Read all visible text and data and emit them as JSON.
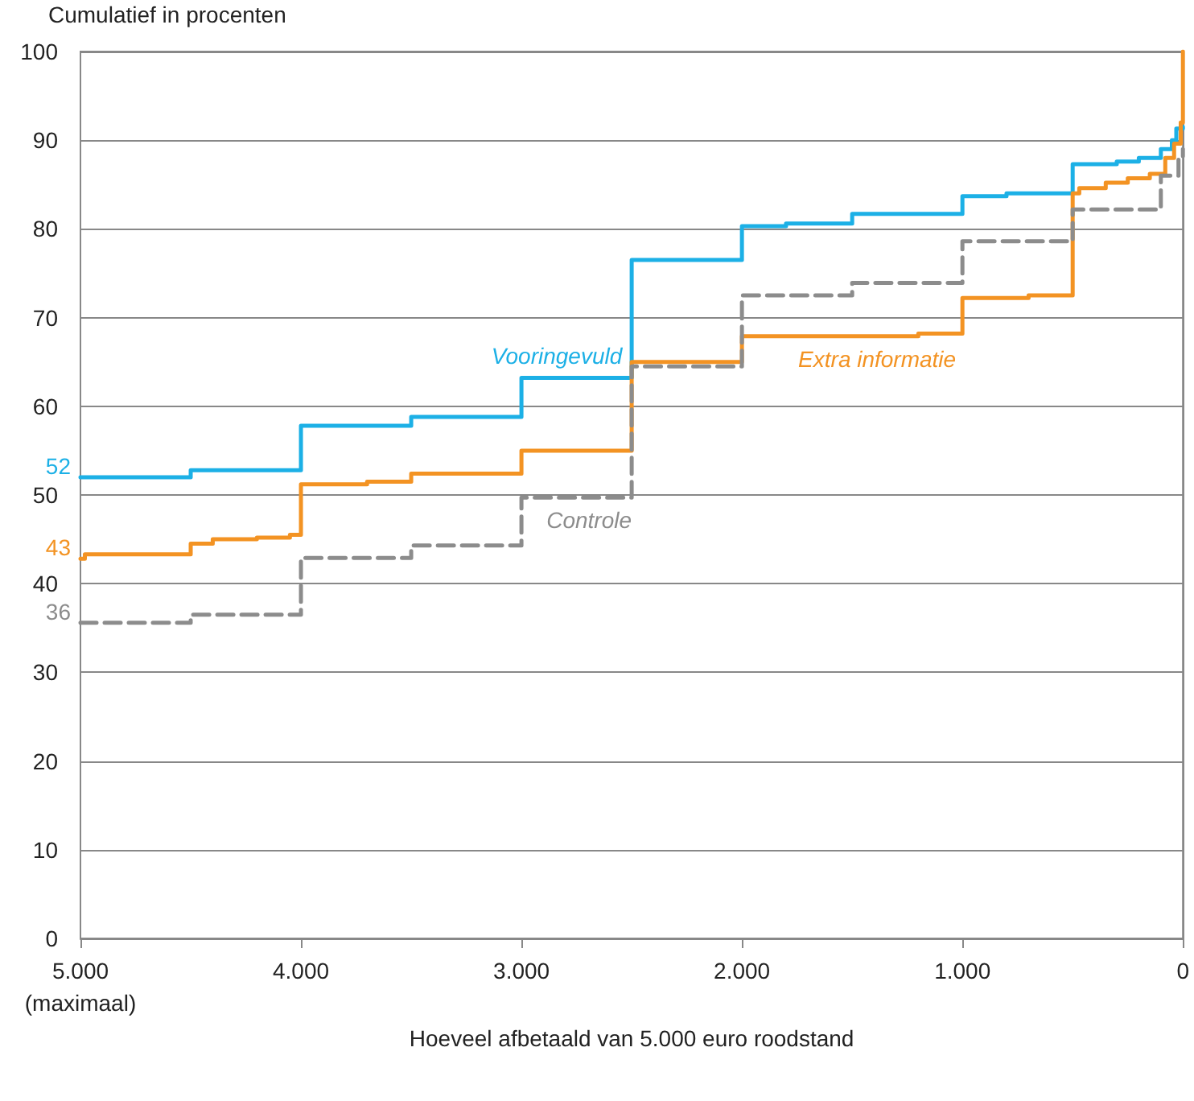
{
  "chart_data": {
    "type": "step",
    "ylabel": "Cumulatief in procenten",
    "xlabel": "Hoeveel afbetaald van 5.000 euro roodstand",
    "xlim": [
      5000,
      0
    ],
    "xticks": [
      {
        "value": 5000,
        "label": "5.000\n(maximaal)"
      },
      {
        "value": 4000,
        "label": "4.000"
      },
      {
        "value": 3000,
        "label": "3.000"
      },
      {
        "value": 2000,
        "label": "2.000"
      },
      {
        "value": 1000,
        "label": "1.000"
      },
      0
    ],
    "ylim": [
      0,
      100
    ],
    "yticks": [
      0,
      10,
      20,
      30,
      40,
      50,
      60,
      70,
      80,
      90,
      100
    ],
    "grid": "y",
    "legend": false,
    "marker": "none",
    "series": [
      {
        "name": "Vooringevuld",
        "color": "#1cb0e6",
        "line_style": "solid",
        "x": [
          5000,
          4500,
          4000,
          3500,
          3000,
          2500,
          2000,
          1800,
          1500,
          1000,
          800,
          500,
          300,
          200,
          100,
          50,
          30,
          0
        ],
        "values": [
          52,
          52.8,
          57.8,
          58.8,
          63.2,
          76.5,
          80.3,
          80.6,
          81.7,
          83.7,
          84,
          87.3,
          87.6,
          88,
          89,
          90,
          91.3,
          91.5
        ]
      },
      {
        "name": "Extra informatie",
        "color": "#f39323",
        "line_style": "solid",
        "x": [
          5000,
          4980,
          4500,
          4400,
          4200,
          4050,
          4000,
          3700,
          3500,
          3000,
          2500,
          2000,
          1200,
          1000,
          700,
          500,
          470,
          350,
          250,
          150,
          80,
          40,
          10,
          0
        ],
        "values": [
          42.8,
          43.3,
          44.5,
          45,
          45.2,
          45.5,
          51.2,
          51.5,
          52.4,
          55,
          65,
          67.9,
          68.2,
          72.2,
          72.5,
          84,
          84.6,
          85.2,
          85.7,
          86.2,
          88,
          89.6,
          92,
          100
        ]
      },
      {
        "name": "Controle",
        "color": "#8c8c8c",
        "line_style": "dashed",
        "x": [
          5000,
          4500,
          4000,
          3500,
          3000,
          2500,
          2000,
          1500,
          1000,
          500,
          100,
          20,
          0
        ],
        "values": [
          35.6,
          36.5,
          42.9,
          44.3,
          49.7,
          64.5,
          72.5,
          73.9,
          78.6,
          82.2,
          86,
          88.2,
          89
        ]
      }
    ],
    "annotations": [
      "52",
      "43",
      "36"
    ]
  }
}
